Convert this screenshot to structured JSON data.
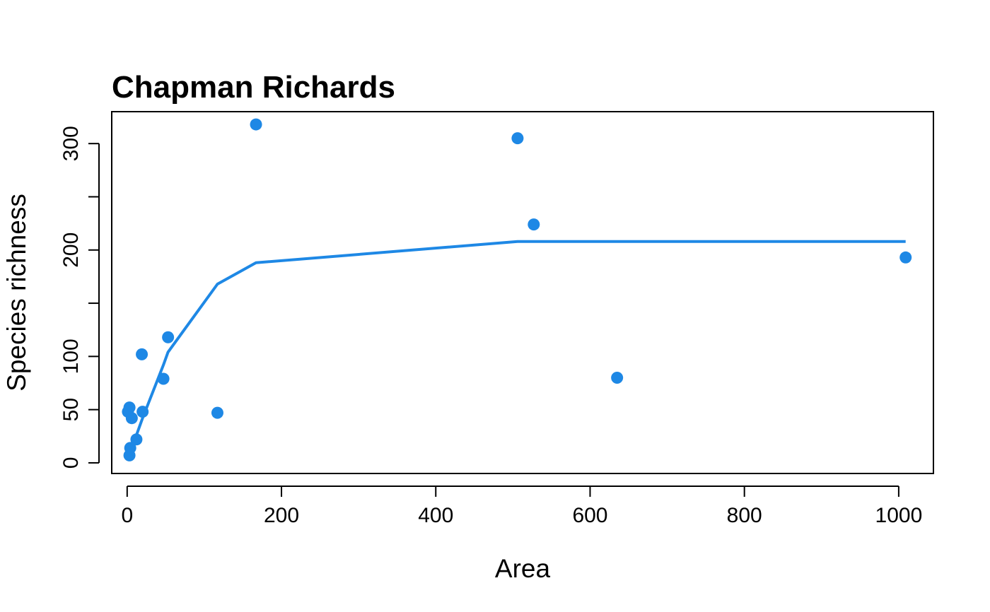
{
  "chart_data": {
    "type": "scatter",
    "title": "Chapman Richards",
    "xlabel": "Area",
    "ylabel": "Species richness",
    "xlim": [
      -20,
      1045
    ],
    "ylim": [
      -10,
      330
    ],
    "x_ticks": [
      0,
      200,
      400,
      600,
      800,
      1000
    ],
    "x_tick_labels": [
      "0",
      "200",
      "400",
      "600",
      "800",
      "1000"
    ],
    "y_ticks": [
      0,
      50,
      100,
      150,
      200,
      250,
      300
    ],
    "y_tick_labels": [
      "0",
      "50",
      "100",
      "",
      "200",
      "",
      "300"
    ],
    "grid": false,
    "colors": {
      "points": "#1E88E5",
      "line": "#1E88E5",
      "axes": "#000000"
    },
    "points": [
      {
        "x": 1,
        "y": 48
      },
      {
        "x": 3,
        "y": 52
      },
      {
        "x": 3,
        "y": 7
      },
      {
        "x": 4,
        "y": 14
      },
      {
        "x": 6,
        "y": 42
      },
      {
        "x": 12,
        "y": 22
      },
      {
        "x": 19,
        "y": 102
      },
      {
        "x": 20,
        "y": 48
      },
      {
        "x": 47,
        "y": 79
      },
      {
        "x": 53,
        "y": 118
      },
      {
        "x": 117,
        "y": 47
      },
      {
        "x": 167,
        "y": 318
      },
      {
        "x": 506,
        "y": 305
      },
      {
        "x": 527,
        "y": 224
      },
      {
        "x": 635,
        "y": 80
      },
      {
        "x": 1009,
        "y": 193
      }
    ],
    "fitted_line": {
      "x": [
        1,
        3,
        6,
        12,
        20,
        47,
        53,
        117,
        167,
        506,
        527,
        635,
        1009
      ],
      "y": [
        4,
        8,
        15,
        26,
        42,
        92,
        104,
        168,
        188,
        208,
        208,
        208,
        208
      ]
    }
  }
}
